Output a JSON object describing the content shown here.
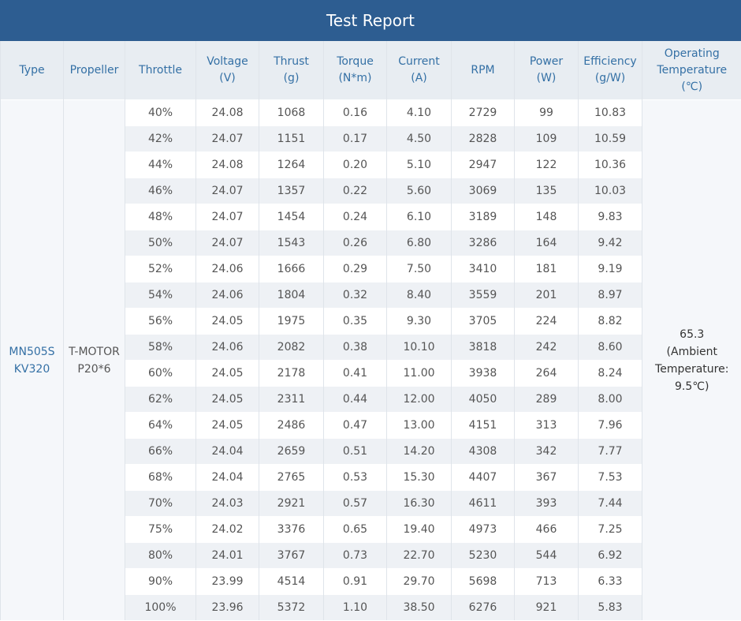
{
  "title": "Test Report",
  "headers": [
    [
      "Type"
    ],
    [
      "Propeller"
    ],
    [
      "Throttle"
    ],
    [
      "Voltage",
      "(V)"
    ],
    [
      "Thrust",
      "(g)"
    ],
    [
      "Torque",
      "(N*m)"
    ],
    [
      "Current",
      "(A)"
    ],
    [
      "RPM"
    ],
    [
      "Power",
      "(W)"
    ],
    [
      "Efficiency",
      "(g/W)"
    ],
    [
      "Operating",
      "Temperature",
      "(℃)"
    ]
  ],
  "type": [
    "MN505S",
    "KV320"
  ],
  "propeller": [
    "T-MOTOR",
    "P20*6"
  ],
  "operating_temperature": [
    "65.3",
    "(Ambient",
    "Temperature:",
    "9.5℃)"
  ],
  "rows": [
    [
      "40%",
      "24.08",
      "1068",
      "0.16",
      "4.10",
      "2729",
      "99",
      "10.83"
    ],
    [
      "42%",
      "24.07",
      "1151",
      "0.17",
      "4.50",
      "2828",
      "109",
      "10.59"
    ],
    [
      "44%",
      "24.08",
      "1264",
      "0.20",
      "5.10",
      "2947",
      "122",
      "10.36"
    ],
    [
      "46%",
      "24.07",
      "1357",
      "0.22",
      "5.60",
      "3069",
      "135",
      "10.03"
    ],
    [
      "48%",
      "24.07",
      "1454",
      "0.24",
      "6.10",
      "3189",
      "148",
      "9.83"
    ],
    [
      "50%",
      "24.07",
      "1543",
      "0.26",
      "6.80",
      "3286",
      "164",
      "9.42"
    ],
    [
      "52%",
      "24.06",
      "1666",
      "0.29",
      "7.50",
      "3410",
      "181",
      "9.19"
    ],
    [
      "54%",
      "24.06",
      "1804",
      "0.32",
      "8.40",
      "3559",
      "201",
      "8.97"
    ],
    [
      "56%",
      "24.05",
      "1975",
      "0.35",
      "9.30",
      "3705",
      "224",
      "8.82"
    ],
    [
      "58%",
      "24.06",
      "2082",
      "0.38",
      "10.10",
      "3818",
      "242",
      "8.60"
    ],
    [
      "60%",
      "24.05",
      "2178",
      "0.41",
      "11.00",
      "3938",
      "264",
      "8.24"
    ],
    [
      "62%",
      "24.05",
      "2311",
      "0.44",
      "12.00",
      "4050",
      "289",
      "8.00"
    ],
    [
      "64%",
      "24.05",
      "2486",
      "0.47",
      "13.00",
      "4151",
      "313",
      "7.96"
    ],
    [
      "66%",
      "24.04",
      "2659",
      "0.51",
      "14.20",
      "4308",
      "342",
      "7.77"
    ],
    [
      "68%",
      "24.04",
      "2765",
      "0.53",
      "15.30",
      "4407",
      "367",
      "7.53"
    ],
    [
      "70%",
      "24.03",
      "2921",
      "0.57",
      "16.30",
      "4611",
      "393",
      "7.44"
    ],
    [
      "75%",
      "24.02",
      "3376",
      "0.65",
      "19.40",
      "4973",
      "466",
      "7.25"
    ],
    [
      "80%",
      "24.01",
      "3767",
      "0.73",
      "22.70",
      "5230",
      "544",
      "6.92"
    ],
    [
      "90%",
      "23.99",
      "4514",
      "0.91",
      "29.70",
      "5698",
      "713",
      "6.33"
    ],
    [
      "100%",
      "23.96",
      "5372",
      "1.10",
      "38.50",
      "6276",
      "921",
      "5.83"
    ]
  ]
}
